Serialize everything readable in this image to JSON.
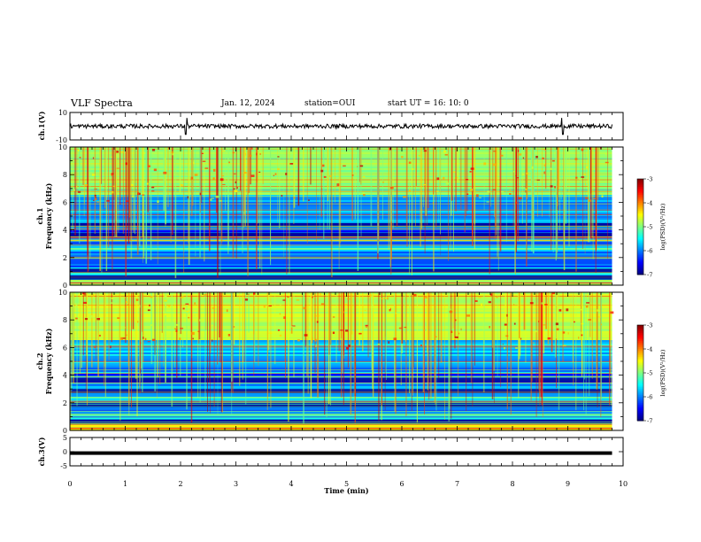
{
  "header": {
    "title": "VLF Spectra",
    "date": "Jan. 12, 2024",
    "station": "station=OUI",
    "start": "start UT =  16: 10: 0"
  },
  "colors": {
    "colormap": [
      "#00007f",
      "#0000ff",
      "#007fff",
      "#00ffff",
      "#7fff7f",
      "#ffff00",
      "#ff7f00",
      "#ff0000",
      "#7f0000"
    ],
    "trace": "#000000"
  },
  "chart_data": [
    {
      "type": "line",
      "ylabel": "ch.1(V)",
      "ylim": [
        -10,
        10
      ],
      "y_ticks": [
        "10",
        "-10"
      ],
      "x_range_min": [
        0,
        9.8
      ],
      "description_values": {
        "baseline": 0,
        "noise_amplitude": 1.5,
        "spikes_at_min": [
          2.1,
          8.9
        ]
      },
      "grid": false
    },
    {
      "type": "heatmap",
      "ylabel": "ch.1",
      "ylabel2": "Frequency (kHz)",
      "ylim": [
        0,
        10
      ],
      "y_ticks": [
        "0",
        "2",
        "4",
        "6",
        "8",
        "10"
      ],
      "x_range_min": [
        0,
        9.8
      ],
      "colorbar": {
        "label": "log(PSD)(V²/Hz)",
        "range": [
          -7,
          -3
        ],
        "ticks": [
          "-3",
          "-4",
          "-5",
          "-6",
          "-7"
        ]
      }
    },
    {
      "type": "heatmap",
      "ylabel": "ch.2",
      "ylabel2": "Frequency (kHz)",
      "ylim": [
        0,
        10
      ],
      "y_ticks": [
        "0",
        "2",
        "4",
        "6",
        "8",
        "10"
      ],
      "x_range_min": [
        0,
        9.8
      ],
      "colorbar": {
        "label": "log(PSD)(V²/Hz)",
        "range": [
          -7,
          -3
        ],
        "ticks": [
          "-3",
          "-4",
          "-5",
          "-6",
          "-7"
        ]
      }
    },
    {
      "type": "line",
      "ylabel": "ch.3(V)",
      "ylim": [
        -5,
        5
      ],
      "y_ticks": [
        "5",
        "0",
        "-5"
      ],
      "x_range_min": [
        0,
        9.8
      ],
      "description_values": {
        "baseline": -0.5,
        "noise_amplitude": 0.3
      },
      "xlabel": "Time (min)",
      "x_ticks": [
        "0",
        "1",
        "2",
        "3",
        "4",
        "5",
        "6",
        "7",
        "8",
        "9",
        "10"
      ],
      "xlim": [
        0,
        10
      ]
    }
  ]
}
